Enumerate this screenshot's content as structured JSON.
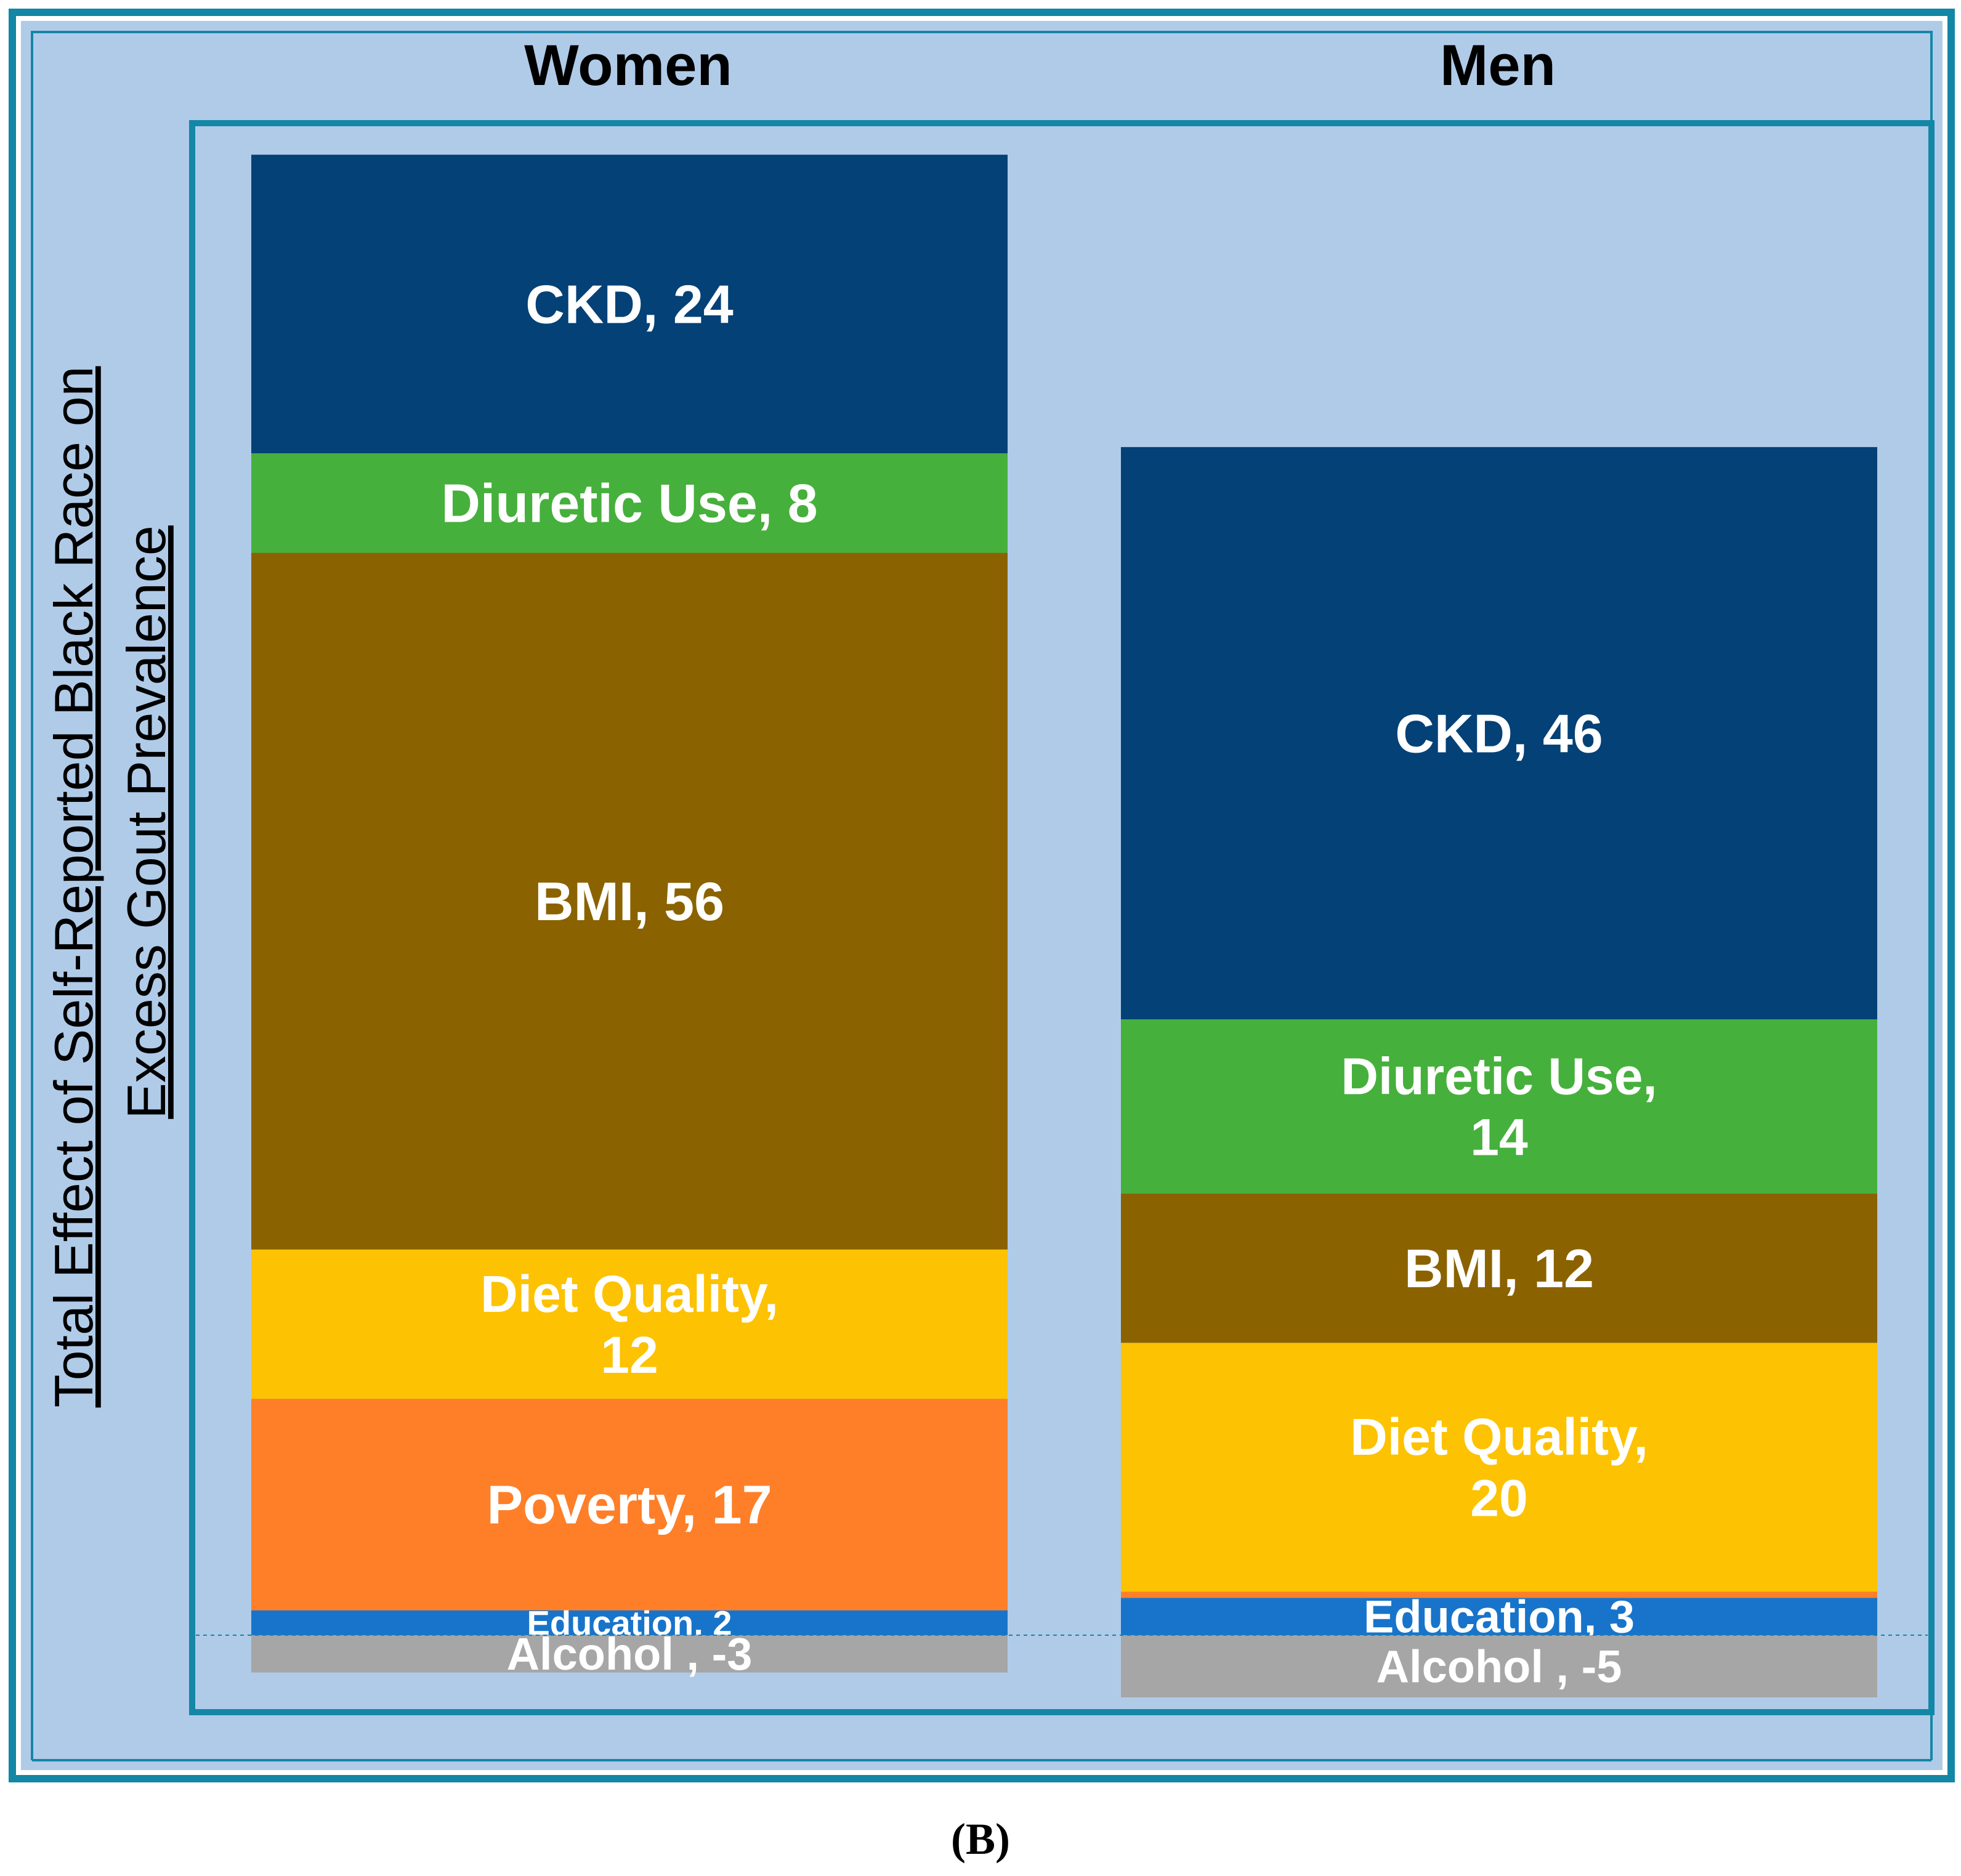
{
  "chart_data": {
    "type": "bar",
    "subtype": "stacked",
    "ylabel_line1": "Total Effect of Self-Reported Black Race on",
    "ylabel_line2": "Excess Gout Prevalence",
    "caption": "(B)",
    "colors": {
      "outer_bg": "#b0cbe8",
      "frame": "#1486a6",
      "CKD": "#034177",
      "Diuretic Use": "#46b03c",
      "BMI": "#8b6200",
      "Diet Quality": "#fdc202",
      "Poverty": "#fe7f28",
      "Education": "#1874ca",
      "Alcohol": "#a6a6a6"
    },
    "panels": [
      {
        "title": "Women",
        "segments": [
          {
            "name": "CKD",
            "value": 24,
            "label_lines": [
              "CKD, 24"
            ]
          },
          {
            "name": "Diuretic Use",
            "value": 8,
            "label_lines": [
              "Diuretic Use, 8"
            ]
          },
          {
            "name": "BMI",
            "value": 56,
            "label_lines": [
              "BMI, 56"
            ]
          },
          {
            "name": "Diet Quality",
            "value": 12,
            "label_lines": [
              "Diet Quality,",
              "12"
            ]
          },
          {
            "name": "Poverty",
            "value": 17,
            "label_lines": [
              "Poverty, 17"
            ]
          },
          {
            "name": "Education",
            "value": 2,
            "label_lines": [
              "Education, 2"
            ]
          },
          {
            "name": "Alcohol",
            "value": -3,
            "label_lines": [
              "Alcohol , -3"
            ]
          }
        ]
      },
      {
        "title": "Men",
        "segments": [
          {
            "name": "CKD",
            "value": 46,
            "label_lines": [
              "CKD, 46"
            ]
          },
          {
            "name": "Diuretic Use",
            "value": 14,
            "label_lines": [
              "Diuretic Use,",
              "14"
            ]
          },
          {
            "name": "BMI",
            "value": 12,
            "label_lines": [
              "BMI, 12"
            ]
          },
          {
            "name": "Diet Quality",
            "value": 20,
            "label_lines": [
              "Diet Quality,",
              "20"
            ]
          },
          {
            "name": "Poverty",
            "value": 0.5,
            "label_lines": []
          },
          {
            "name": "Education",
            "value": 3,
            "label_lines": [
              "Education, 3"
            ]
          },
          {
            "name": "Alcohol",
            "value": -5,
            "label_lines": [
              "Alcohol , -5"
            ]
          }
        ]
      }
    ]
  }
}
